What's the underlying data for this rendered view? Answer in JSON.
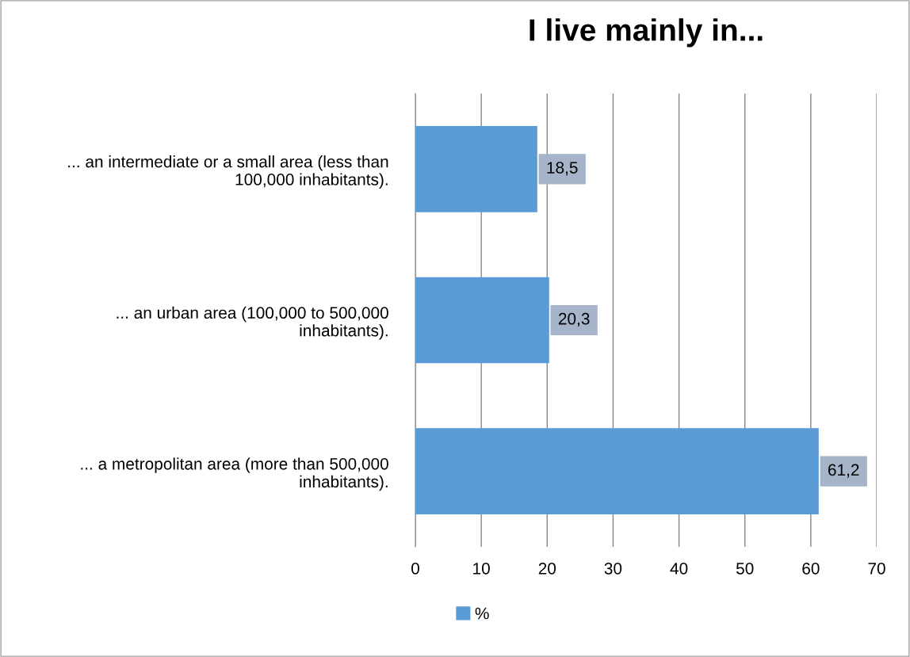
{
  "chart_data": {
    "type": "bar",
    "orientation": "horizontal",
    "title": "I live mainly in...",
    "categories": [
      "... an intermediate or a small area (less than 100,000 inhabitants).",
      "... an urban area (100,000 to 500,000 inhabitants).",
      "... a metropolitan area (more than 500,000 inhabitants)."
    ],
    "series": [
      {
        "name": "%",
        "color": "#5b9bd5",
        "values": [
          18.5,
          20.3,
          61.2
        ],
        "value_labels": [
          "18,5",
          "20,3",
          "61,2"
        ]
      }
    ],
    "xlim": [
      0,
      70
    ],
    "xticks": [
      0,
      10,
      20,
      30,
      40,
      50,
      60,
      70
    ],
    "grid": "x",
    "legend": "bottom"
  }
}
